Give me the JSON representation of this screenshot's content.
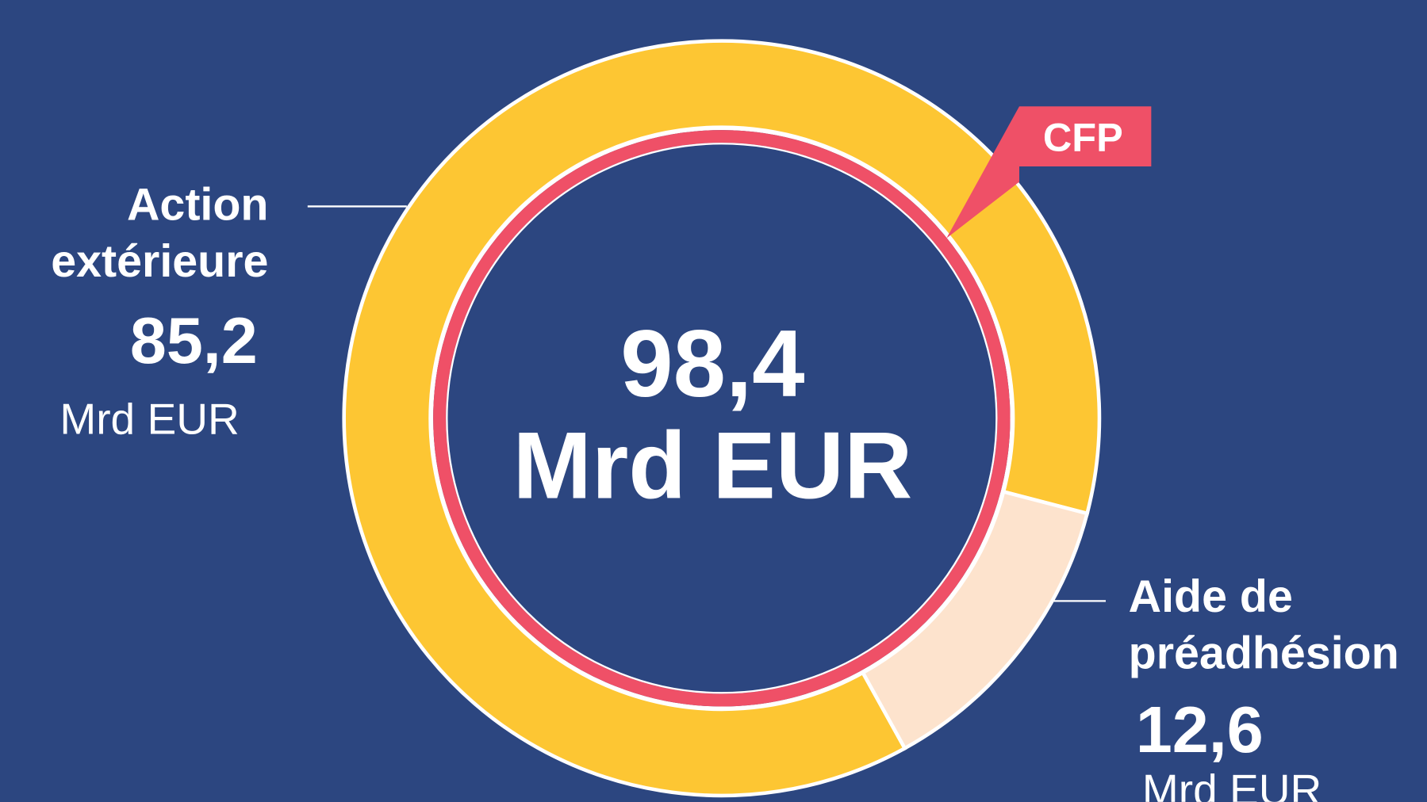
{
  "chart_data": {
    "type": "donut",
    "categories": [
      "Action extérieure",
      "Aide de préadhésion"
    ],
    "values": [
      85.2,
      12.6
    ],
    "value_labels": [
      "85,2",
      "12,6"
    ],
    "unit": "Mrd EUR",
    "colors": [
      "#fdc633",
      "#fde3cd"
    ],
    "total": {
      "value": 98.4,
      "label": "98,4"
    },
    "callout": "CFP"
  }
}
